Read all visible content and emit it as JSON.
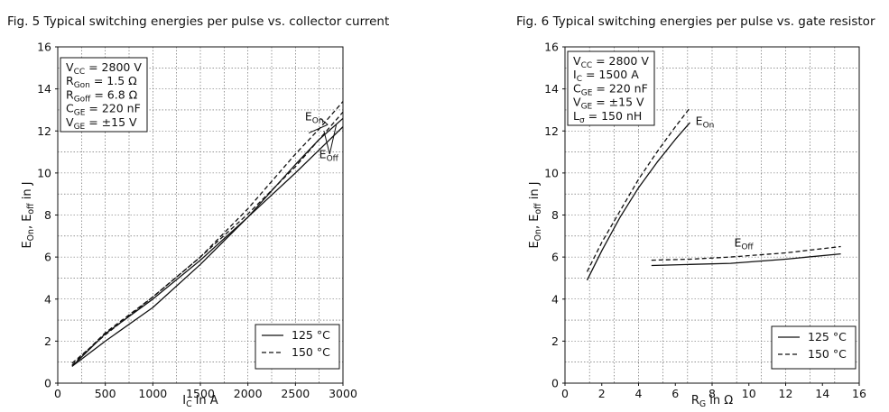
{
  "titles": {
    "fig5": "Fig. 5  Typical switching energies per pulse vs. collector current",
    "fig6": "Fig. 6  Typical switching energies per pulse vs. gate resistor"
  },
  "chart_data": [
    {
      "id": "fig5",
      "type": "line",
      "title": "Fig. 5  Typical switching energies per pulse vs. collector current",
      "xlabel": {
        "main": "I",
        "sub": "C",
        "rest": " in A"
      },
      "ylabel": {
        "parts": [
          [
            "E",
            ""
          ],
          [
            "On",
            "sub"
          ],
          [
            ", E",
            ""
          ],
          [
            "off",
            "sub"
          ],
          [
            " in J",
            ""
          ]
        ]
      },
      "xlim": [
        0,
        3000
      ],
      "ylim": [
        0,
        16
      ],
      "xticks": [
        "0",
        "500",
        "1000",
        "1500",
        "2000",
        "2500",
        "3000"
      ],
      "yticks": [
        "0",
        "2",
        "4",
        "6",
        "8",
        "10",
        "12",
        "14",
        "16"
      ],
      "grid": true,
      "params": [
        {
          "main": "V",
          "sub": "CC",
          "rest": " = 2800 V"
        },
        {
          "main": "R",
          "sub": "Gon",
          "rest": " = 1.5 Ω"
        },
        {
          "main": "R",
          "sub": "Goff",
          "rest": " = 6.8 Ω"
        },
        {
          "main": "C",
          "sub": "GE",
          "rest": " = 220 nF"
        },
        {
          "main": "V",
          "sub": "GE",
          "rest": " = ±15 V"
        }
      ],
      "annotations": [
        {
          "main": "E",
          "sub": "On",
          "x": 2600,
          "y": 12.5
        },
        {
          "main": "E",
          "sub": "Off",
          "x": 2750,
          "y": 10.7
        }
      ],
      "legend": {
        "position": "bottom-right",
        "entries": [
          "125 °C",
          "150 °C"
        ],
        "styles": [
          "solid",
          "dashed"
        ]
      },
      "series": [
        {
          "curve": "On",
          "temp": "125 °C",
          "style": "solid",
          "x": [
            150,
            500,
            1000,
            1500,
            2000,
            2500,
            2750,
            3000
          ],
          "y": [
            0.8,
            2.0,
            3.6,
            5.65,
            7.9,
            10.4,
            11.6,
            12.6
          ]
        },
        {
          "curve": "On",
          "temp": "150 °C",
          "style": "dashed",
          "x": [
            150,
            500,
            1000,
            1500,
            2000,
            2500,
            2750,
            3000
          ],
          "y": [
            0.95,
            2.3,
            4.1,
            6.0,
            8.3,
            10.9,
            12.1,
            13.4
          ]
        },
        {
          "curve": "Off",
          "temp": "125 °C",
          "style": "solid",
          "x": [
            150,
            500,
            1000,
            1500,
            2000,
            2500,
            2750,
            3000
          ],
          "y": [
            0.8,
            2.35,
            4.0,
            5.85,
            7.9,
            10.0,
            11.1,
            12.2
          ]
        },
        {
          "curve": "Off",
          "temp": "150 °C",
          "style": "dashed",
          "x": [
            150,
            500,
            1000,
            1500,
            2000,
            2500,
            2750,
            3000
          ],
          "y": [
            0.85,
            2.4,
            4.1,
            6.0,
            8.05,
            10.3,
            11.6,
            12.9
          ]
        }
      ]
    },
    {
      "id": "fig6",
      "type": "line",
      "title": "Fig. 6  Typical switching energies per pulse vs. gate resistor",
      "xlabel": {
        "main": "R",
        "sub": "G",
        "rest": " in Ω"
      },
      "ylabel": {
        "parts": [
          [
            "E",
            ""
          ],
          [
            "On",
            "sub"
          ],
          [
            ", E",
            ""
          ],
          [
            "off",
            "sub"
          ],
          [
            " in J",
            ""
          ]
        ]
      },
      "xlim": [
        0,
        16
      ],
      "ylim": [
        0,
        16
      ],
      "xticks": [
        "0",
        "2",
        "4",
        "6",
        "8",
        "10",
        "12",
        "14",
        "16"
      ],
      "yticks": [
        "0",
        "2",
        "4",
        "6",
        "8",
        "10",
        "12",
        "14",
        "16"
      ],
      "grid": true,
      "params": [
        {
          "main": "V",
          "sub": "CC",
          "rest": " = 2800 V"
        },
        {
          "main": "I",
          "sub": "C",
          "rest": " = 1500 A"
        },
        {
          "main": "C",
          "sub": "GE",
          "rest": " = 220 nF"
        },
        {
          "main": "V",
          "sub": "GE",
          "rest": " = ±15 V"
        },
        {
          "main": "L",
          "sub": "σ",
          "rest": " = 150 nH"
        }
      ],
      "annotations": [
        {
          "main": "E",
          "sub": "On",
          "x": 7.1,
          "y": 12.3
        },
        {
          "main": "E",
          "sub": "Off",
          "x": 9.2,
          "y": 6.5
        }
      ],
      "legend": {
        "position": "bottom-right",
        "entries": [
          "125 °C",
          "150 °C"
        ],
        "styles": [
          "solid",
          "dashed"
        ]
      },
      "series": [
        {
          "curve": "On",
          "temp": "125 °C",
          "style": "solid",
          "x": [
            1.2,
            2.0,
            3.0,
            4.0,
            5.0,
            6.0,
            6.8
          ],
          "y": [
            4.9,
            6.3,
            7.9,
            9.3,
            10.5,
            11.6,
            12.4
          ]
        },
        {
          "curve": "On",
          "temp": "150 °C",
          "style": "dashed",
          "x": [
            1.2,
            2.0,
            3.0,
            4.0,
            5.0,
            6.0,
            6.8
          ],
          "y": [
            5.3,
            6.7,
            8.2,
            9.7,
            11.0,
            12.2,
            13.1
          ]
        },
        {
          "curve": "Off",
          "temp": "125 °C",
          "style": "solid",
          "x": [
            4.7,
            6.8,
            9.0,
            12.0,
            15.0
          ],
          "y": [
            5.6,
            5.65,
            5.7,
            5.9,
            6.15
          ]
        },
        {
          "curve": "Off",
          "temp": "150 °C",
          "style": "dashed",
          "x": [
            4.7,
            6.8,
            9.0,
            12.0,
            15.0
          ],
          "y": [
            5.85,
            5.9,
            6.0,
            6.2,
            6.5
          ]
        }
      ]
    }
  ]
}
